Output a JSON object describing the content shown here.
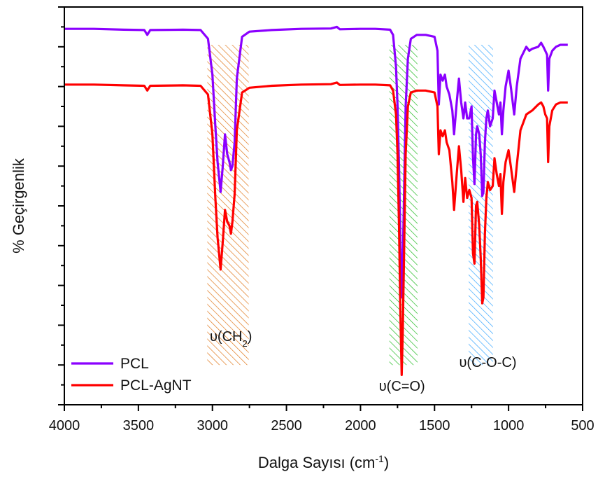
{
  "chart_data": {
    "type": "line",
    "title": "",
    "xlabel": "Dalga Sayısı (cm",
    "xlabel_sup": "-1",
    "xlabel_close": ")",
    "ylabel": "% Geçirgenlik",
    "xlim": [
      4000,
      500
    ],
    "x_reversed": true,
    "ylim": [
      0,
      10
    ],
    "y_ticklabels_shown": false,
    "x_ticks": [
      4000,
      3500,
      3000,
      2500,
      2000,
      1500,
      1000,
      500
    ],
    "x_ticklabels": [
      "4000",
      "3500",
      "3000",
      "2500",
      "2000",
      "1500",
      "1000",
      "500"
    ],
    "grid": false,
    "legend": {
      "placement": "bottom-left"
    },
    "series": [
      {
        "name": "PCL",
        "color": "#8b00ff",
        "points": [
          [
            4000,
            9.45
          ],
          [
            3800,
            9.45
          ],
          [
            3600,
            9.43
          ],
          [
            3460,
            9.42
          ],
          [
            3440,
            9.3
          ],
          [
            3420,
            9.42
          ],
          [
            3200,
            9.43
          ],
          [
            3080,
            9.42
          ],
          [
            3030,
            9.2
          ],
          [
            3000,
            8.3
          ],
          [
            2980,
            7.0
          ],
          [
            2965,
            6.1
          ],
          [
            2945,
            5.35
          ],
          [
            2930,
            6.0
          ],
          [
            2915,
            6.8
          ],
          [
            2900,
            6.3
          ],
          [
            2885,
            6.1
          ],
          [
            2875,
            5.9
          ],
          [
            2865,
            6.0
          ],
          [
            2850,
            6.6
          ],
          [
            2835,
            8.2
          ],
          [
            2800,
            9.25
          ],
          [
            2750,
            9.38
          ],
          [
            2600,
            9.42
          ],
          [
            2400,
            9.45
          ],
          [
            2200,
            9.46
          ],
          [
            2160,
            9.5
          ],
          [
            2140,
            9.44
          ],
          [
            2000,
            9.45
          ],
          [
            1900,
            9.45
          ],
          [
            1800,
            9.43
          ],
          [
            1780,
            9.3
          ],
          [
            1760,
            8.5
          ],
          [
            1750,
            7.5
          ],
          [
            1740,
            6.0
          ],
          [
            1730,
            4.0
          ],
          [
            1722,
            2.7
          ],
          [
            1715,
            3.5
          ],
          [
            1705,
            5.5
          ],
          [
            1695,
            7.5
          ],
          [
            1680,
            8.7
          ],
          [
            1660,
            9.2
          ],
          [
            1620,
            9.3
          ],
          [
            1560,
            9.3
          ],
          [
            1500,
            9.25
          ],
          [
            1480,
            8.9
          ],
          [
            1471,
            7.55
          ],
          [
            1460,
            8.3
          ],
          [
            1445,
            8.15
          ],
          [
            1430,
            8.3
          ],
          [
            1418,
            8.0
          ],
          [
            1400,
            7.8
          ],
          [
            1380,
            7.4
          ],
          [
            1368,
            6.8
          ],
          [
            1350,
            7.6
          ],
          [
            1335,
            8.2
          ],
          [
            1320,
            7.6
          ],
          [
            1305,
            7.2
          ],
          [
            1293,
            7.6
          ],
          [
            1280,
            7.2
          ],
          [
            1265,
            7.2
          ],
          [
            1250,
            7.5
          ],
          [
            1240,
            6.2
          ],
          [
            1230,
            5.55
          ],
          [
            1220,
            6.8
          ],
          [
            1212,
            7.0
          ],
          [
            1198,
            6.8
          ],
          [
            1188,
            6.3
          ],
          [
            1178,
            5.25
          ],
          [
            1170,
            5.35
          ],
          [
            1160,
            6.6
          ],
          [
            1150,
            7.2
          ],
          [
            1140,
            7.4
          ],
          [
            1125,
            7.0
          ],
          [
            1107,
            7.2
          ],
          [
            1095,
            7.9
          ],
          [
            1080,
            7.6
          ],
          [
            1065,
            7.3
          ],
          [
            1055,
            7.6
          ],
          [
            1045,
            6.8
          ],
          [
            1035,
            7.4
          ],
          [
            1020,
            8.0
          ],
          [
            1000,
            8.4
          ],
          [
            985,
            8.0
          ],
          [
            962,
            7.3
          ],
          [
            945,
            8.0
          ],
          [
            920,
            8.7
          ],
          [
            880,
            9.0
          ],
          [
            860,
            8.9
          ],
          [
            840,
            8.95
          ],
          [
            800,
            9.0
          ],
          [
            780,
            9.1
          ],
          [
            765,
            9.0
          ],
          [
            752,
            8.9
          ],
          [
            740,
            8.8
          ],
          [
            733,
            7.9
          ],
          [
            725,
            8.7
          ],
          [
            705,
            8.9
          ],
          [
            680,
            9.0
          ],
          [
            650,
            9.05
          ],
          [
            620,
            9.05
          ],
          [
            600,
            9.05
          ]
        ]
      },
      {
        "name": "PCL-AgNT",
        "color": "#ff0000",
        "points": [
          [
            4000,
            8.05
          ],
          [
            3800,
            8.05
          ],
          [
            3600,
            8.03
          ],
          [
            3460,
            8.02
          ],
          [
            3440,
            7.9
          ],
          [
            3420,
            8.02
          ],
          [
            3200,
            8.03
          ],
          [
            3080,
            8.02
          ],
          [
            3030,
            7.8
          ],
          [
            3000,
            6.8
          ],
          [
            2980,
            5.2
          ],
          [
            2965,
            4.2
          ],
          [
            2945,
            3.4
          ],
          [
            2930,
            4.1
          ],
          [
            2915,
            4.9
          ],
          [
            2900,
            4.6
          ],
          [
            2885,
            4.5
          ],
          [
            2875,
            4.3
          ],
          [
            2865,
            4.6
          ],
          [
            2850,
            5.3
          ],
          [
            2835,
            6.9
          ],
          [
            2800,
            7.85
          ],
          [
            2750,
            7.97
          ],
          [
            2600,
            8.02
          ],
          [
            2400,
            8.05
          ],
          [
            2200,
            8.06
          ],
          [
            2160,
            8.1
          ],
          [
            2140,
            8.04
          ],
          [
            2000,
            8.05
          ],
          [
            1900,
            8.05
          ],
          [
            1800,
            8.03
          ],
          [
            1780,
            7.9
          ],
          [
            1760,
            7.3
          ],
          [
            1750,
            6.3
          ],
          [
            1740,
            4.5
          ],
          [
            1730,
            2.2
          ],
          [
            1722,
            0.75
          ],
          [
            1715,
            1.8
          ],
          [
            1705,
            4.0
          ],
          [
            1695,
            6.3
          ],
          [
            1680,
            7.5
          ],
          [
            1660,
            7.85
          ],
          [
            1620,
            7.9
          ],
          [
            1560,
            7.9
          ],
          [
            1500,
            7.85
          ],
          [
            1480,
            7.5
          ],
          [
            1471,
            6.3
          ],
          [
            1460,
            6.9
          ],
          [
            1445,
            6.75
          ],
          [
            1430,
            6.9
          ],
          [
            1418,
            6.6
          ],
          [
            1400,
            6.4
          ],
          [
            1380,
            5.6
          ],
          [
            1368,
            4.9
          ],
          [
            1350,
            5.8
          ],
          [
            1335,
            6.5
          ],
          [
            1320,
            5.9
          ],
          [
            1305,
            5.1
          ],
          [
            1293,
            5.7
          ],
          [
            1280,
            5.2
          ],
          [
            1265,
            5.4
          ],
          [
            1250,
            5.2
          ],
          [
            1240,
            3.8
          ],
          [
            1230,
            3.55
          ],
          [
            1220,
            5.0
          ],
          [
            1212,
            5.1
          ],
          [
            1198,
            4.5
          ],
          [
            1188,
            3.7
          ],
          [
            1178,
            2.55
          ],
          [
            1170,
            2.7
          ],
          [
            1160,
            4.3
          ],
          [
            1150,
            5.2
          ],
          [
            1140,
            5.6
          ],
          [
            1125,
            5.4
          ],
          [
            1107,
            5.5
          ],
          [
            1095,
            6.2
          ],
          [
            1080,
            5.8
          ],
          [
            1065,
            5.5
          ],
          [
            1055,
            5.8
          ],
          [
            1045,
            4.8
          ],
          [
            1035,
            5.6
          ],
          [
            1020,
            6.1
          ],
          [
            1000,
            6.4
          ],
          [
            985,
            6.0
          ],
          [
            962,
            5.35
          ],
          [
            945,
            6.0
          ],
          [
            920,
            6.9
          ],
          [
            880,
            7.3
          ],
          [
            860,
            7.35
          ],
          [
            840,
            7.4
          ],
          [
            800,
            7.55
          ],
          [
            780,
            7.6
          ],
          [
            765,
            7.5
          ],
          [
            752,
            7.3
          ],
          [
            740,
            7.2
          ],
          [
            733,
            6.1
          ],
          [
            725,
            7.0
          ],
          [
            705,
            7.4
          ],
          [
            680,
            7.55
          ],
          [
            650,
            7.6
          ],
          [
            620,
            7.6
          ],
          [
            600,
            7.6
          ]
        ]
      }
    ],
    "bands": [
      {
        "label_pre": "υ(CH",
        "label_sub": "2",
        "label_post": ")",
        "x_from": 3035,
        "x_to": 2755,
        "color": "#e07a1f",
        "label_x": 2875,
        "label_y": 1.6
      },
      {
        "label_pre": "υ(C=O)",
        "label_sub": "",
        "label_post": "",
        "x_from": 1805,
        "x_to": 1615,
        "color": "#22bb22",
        "label_x": 1720,
        "label_y": 0.35
      },
      {
        "label_pre": "υ(C-O-C)",
        "label_sub": "",
        "label_post": "",
        "x_from": 1270,
        "x_to": 1105,
        "color": "#3aa7ff",
        "label_x": 1140,
        "label_y": 0.95
      }
    ],
    "band_y_range": [
      1.0,
      9.05
    ]
  }
}
